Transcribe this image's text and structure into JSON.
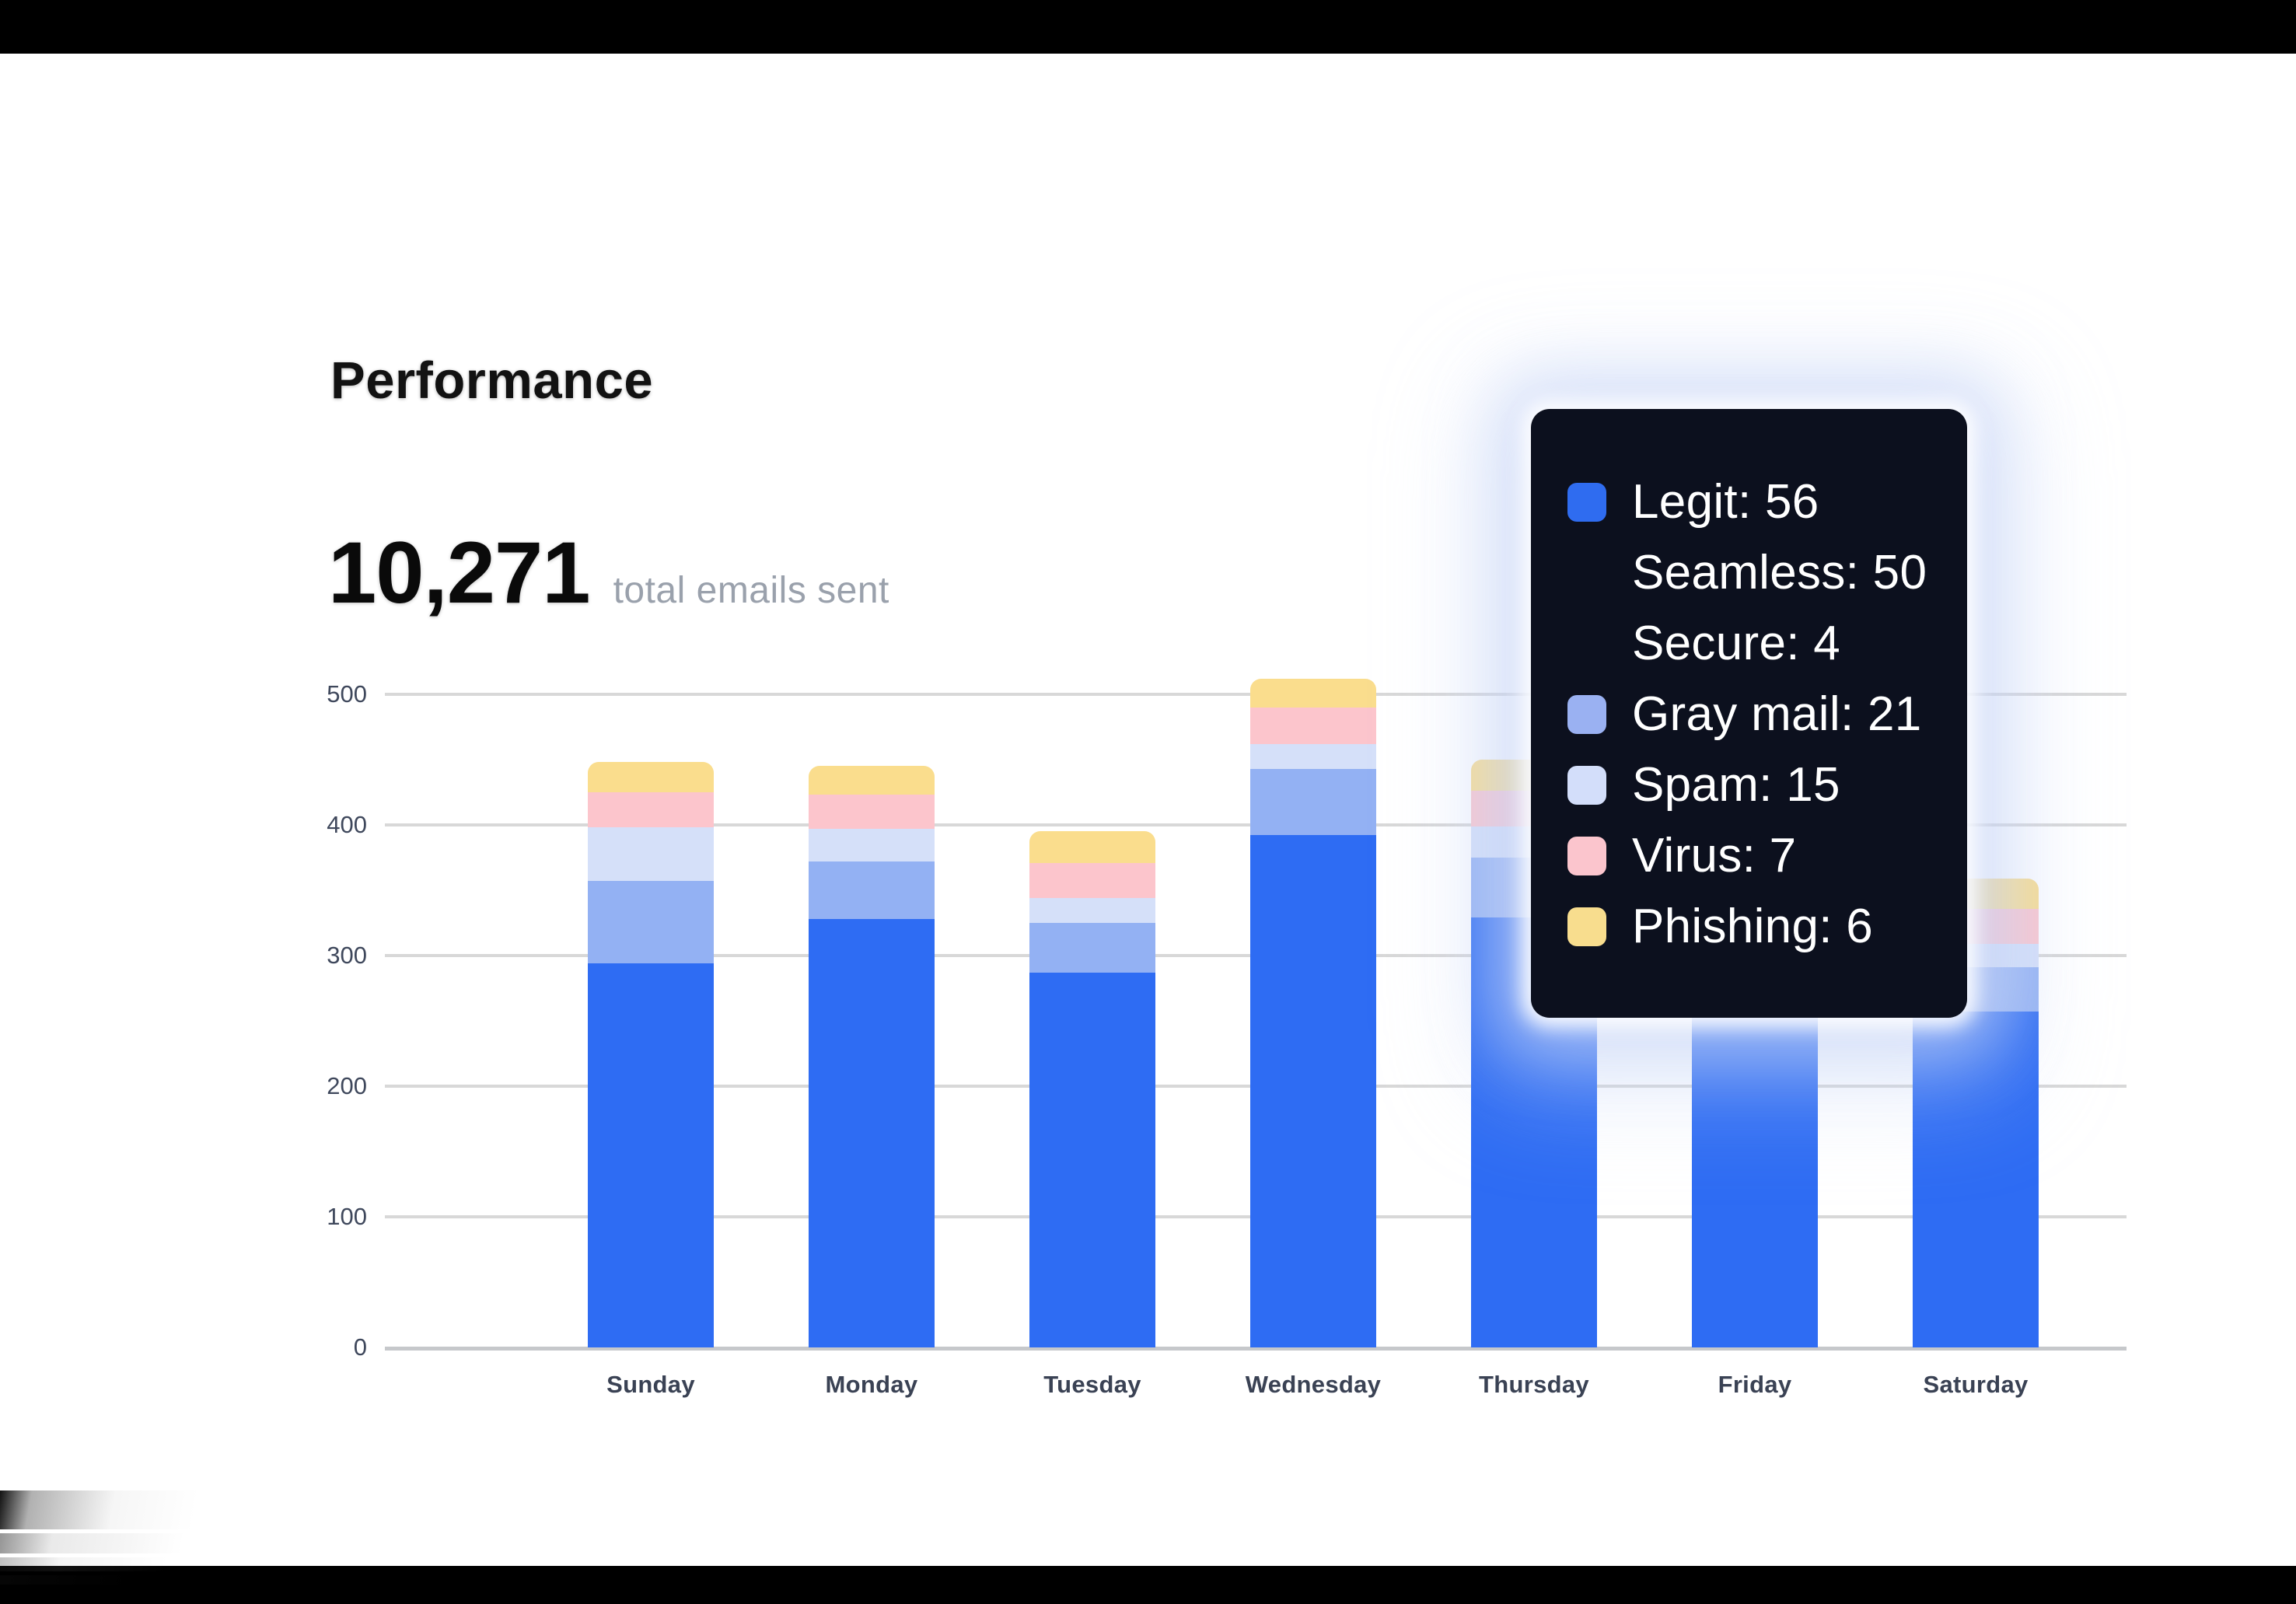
{
  "window": {
    "frame_color": "#000000",
    "content_bg": "#ffffff",
    "top_band_height": 69,
    "bottom_band_top": 2014
  },
  "header": {
    "title": "Performance"
  },
  "stat": {
    "value": "10,271",
    "label": "total emails sent"
  },
  "chart_data": {
    "type": "bar",
    "stacked": true,
    "title": "Performance",
    "categories": [
      "Sunday",
      "Monday",
      "Tuesday",
      "Wednesday",
      "Thursday",
      "Friday",
      "Saturday"
    ],
    "series": [
      {
        "name": "Legit",
        "color": "#2e6cf3",
        "values": [
          294,
          328,
          287,
          392,
          329,
          320,
          257
        ]
      },
      {
        "name": "Gray mail",
        "color": "#93b1f3",
        "values": [
          63,
          44,
          38,
          51,
          46,
          44,
          34
        ]
      },
      {
        "name": "Spam",
        "color": "#d5e0f9",
        "values": [
          41,
          25,
          19,
          19,
          24,
          21,
          18
        ]
      },
      {
        "name": "Virus",
        "color": "#fcc5cc",
        "values": [
          27,
          26,
          27,
          28,
          27,
          26,
          27
        ]
      },
      {
        "name": "Phishing",
        "color": "#fadd8d",
        "values": [
          23,
          22,
          24,
          22,
          24,
          22,
          23
        ]
      }
    ],
    "totals_by_day": [
      448,
      445,
      395,
      512,
      450,
      433,
      359
    ],
    "ylim": [
      0,
      500
    ],
    "y_ticks": [
      500,
      400,
      300,
      200,
      100,
      0
    ],
    "grid": true,
    "legend_position": "none",
    "xlabel": "",
    "ylabel": "",
    "notes": "Friday bar is partially occluded by the hover tooltip; its upper segment values are estimated."
  },
  "tooltip": {
    "bg": "#0c101e",
    "rows": [
      {
        "text": "Legit: 56",
        "swatch": "#2f6cf0"
      },
      {
        "text": "Seamless: 50",
        "swatch": null
      },
      {
        "text": "Secure: 4",
        "swatch": null
      },
      {
        "text": "Gray mail: 21",
        "swatch": "#9ab1f2"
      },
      {
        "text": "Spam: 15",
        "swatch": "#d3defa"
      },
      {
        "text": "Virus: 7",
        "swatch": "#fbc5cd"
      },
      {
        "text": "Phishing: 6",
        "swatch": "#f8dd8e"
      }
    ]
  },
  "axis": {
    "tick_color": "#3f485c",
    "label_color": "#3a4254",
    "grid_color": "#d8d8d8",
    "axis_color": "#c6c8cb"
  }
}
